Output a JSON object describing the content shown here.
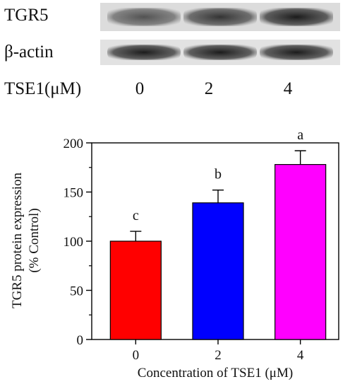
{
  "blot": {
    "rows": [
      {
        "label": "TGR5",
        "band_intensity": [
          0.55,
          0.8,
          1.0
        ]
      },
      {
        "label": "β-actin",
        "band_intensity": [
          1.0,
          1.0,
          1.0
        ]
      }
    ],
    "treatment_label": "TSE1(μM)",
    "concentrations": [
      "0",
      "2",
      "4"
    ]
  },
  "chart_data": {
    "type": "bar",
    "categories": [
      "0",
      "2",
      "4"
    ],
    "values": [
      100,
      139,
      178
    ],
    "errors": [
      10,
      13,
      14
    ],
    "significance_labels": [
      "c",
      "b",
      "a"
    ],
    "colors": [
      "#ff0000",
      "#0000ff",
      "#ff00ff"
    ],
    "title": "",
    "xlabel": "Concentration of TSE1 (μM)",
    "ylabel": "TGR5 protein expression",
    "ylabel2": "(% Control)",
    "ylim": [
      0,
      200
    ],
    "yticks": [
      "0",
      "50",
      "100",
      "150",
      "200"
    ],
    "grid": false
  }
}
